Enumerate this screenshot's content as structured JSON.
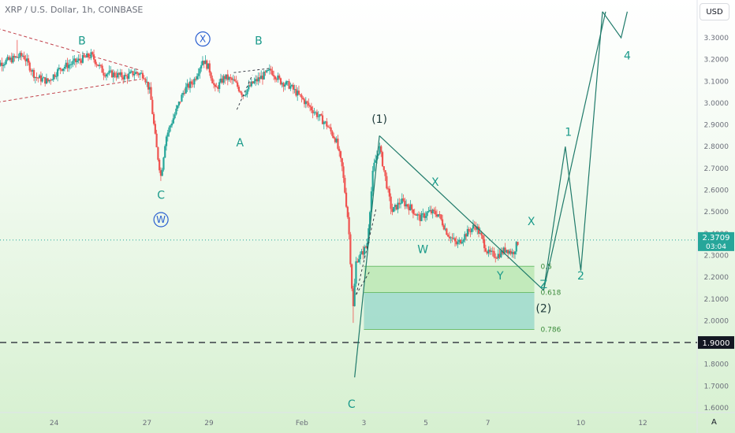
{
  "header": {
    "title": "XRP / U.S. Dollar, 1h, COINBASE"
  },
  "currency_button": "USD",
  "auto_button": "A",
  "colors": {
    "up": "#26a69a",
    "down": "#ef5350",
    "wave": "#1a9a8a",
    "wave_line": "#1f7a6a",
    "fib_fill_light": "#b6e6ad",
    "fib_fill_dark": "#8fd4c8",
    "circle": "#2a5fd0",
    "current_price_bg": "#26a69a",
    "support_bg": "#131722"
  },
  "chart_data": {
    "type": "candlestick",
    "symbol": "XRP / U.S. Dollar",
    "interval": "1h",
    "exchange": "COINBASE",
    "y_axis": {
      "ticks": [
        "3.3000",
        "3.2000",
        "3.1000",
        "3.0000",
        "2.9000",
        "2.8000",
        "2.7000",
        "2.6000",
        "2.5000",
        "2.4000",
        "2.3000",
        "2.2000",
        "2.1000",
        "2.0000",
        "1.9000",
        "1.8000",
        "1.7000",
        "1.6000"
      ],
      "range": [
        1.57,
        3.42
      ]
    },
    "x_axis": {
      "tick_labels": [
        {
          "label": "24",
          "day": 24.0
        },
        {
          "label": "27",
          "day": 27.0
        },
        {
          "label": "29",
          "day": 29.0
        },
        {
          "label": "Feb",
          "day": 32.0
        },
        {
          "label": "3",
          "day": 34.0
        },
        {
          "label": "5",
          "day": 36.0
        },
        {
          "label": "7",
          "day": 38.0
        },
        {
          "label": "10",
          "day": 41.0
        },
        {
          "label": "12",
          "day": 43.0
        }
      ],
      "range": [
        22.0,
        44.5
      ]
    },
    "price_path": [
      [
        22.0,
        3.17
      ],
      [
        22.6,
        3.2
      ],
      [
        23.0,
        3.22
      ],
      [
        23.4,
        3.12
      ],
      [
        23.8,
        3.1
      ],
      [
        24.2,
        3.16
      ],
      [
        24.7,
        3.19
      ],
      [
        25.2,
        3.22
      ],
      [
        25.6,
        3.14
      ],
      [
        26.0,
        3.13
      ],
      [
        26.3,
        3.12
      ],
      [
        26.6,
        3.14
      ],
      [
        26.9,
        3.13
      ],
      [
        27.1,
        3.05
      ],
      [
        27.3,
        2.8
      ],
      [
        27.45,
        2.66
      ],
      [
        27.6,
        2.84
      ],
      [
        27.9,
        2.95
      ],
      [
        28.2,
        3.06
      ],
      [
        28.5,
        3.1
      ],
      [
        28.8,
        3.2
      ],
      [
        29.0,
        3.16
      ],
      [
        29.2,
        3.06
      ],
      [
        29.5,
        3.12
      ],
      [
        29.8,
        3.1
      ],
      [
        30.1,
        3.04
      ],
      [
        30.4,
        3.09
      ],
      [
        30.7,
        3.12
      ],
      [
        31.0,
        3.15
      ],
      [
        31.3,
        3.1
      ],
      [
        31.6,
        3.08
      ],
      [
        32.0,
        3.02
      ],
      [
        32.4,
        2.96
      ],
      [
        32.8,
        2.9
      ],
      [
        33.1,
        2.83
      ],
      [
        33.3,
        2.7
      ],
      [
        33.5,
        2.45
      ],
      [
        33.65,
        2.05
      ],
      [
        33.75,
        2.28
      ],
      [
        33.9,
        2.3
      ],
      [
        34.1,
        2.35
      ],
      [
        34.3,
        2.7
      ],
      [
        34.5,
        2.8
      ],
      [
        34.7,
        2.65
      ],
      [
        34.9,
        2.5
      ],
      [
        35.2,
        2.55
      ],
      [
        35.5,
        2.52
      ],
      [
        35.8,
        2.47
      ],
      [
        36.1,
        2.5
      ],
      [
        36.4,
        2.49
      ],
      [
        36.7,
        2.4
      ],
      [
        37.0,
        2.35
      ],
      [
        37.3,
        2.4
      ],
      [
        37.6,
        2.44
      ],
      [
        37.8,
        2.38
      ],
      [
        38.0,
        2.31
      ],
      [
        38.3,
        2.3
      ],
      [
        38.6,
        2.33
      ],
      [
        38.8,
        2.31
      ],
      [
        39.0,
        2.37
      ]
    ],
    "wick_extremes": [
      {
        "day": 27.45,
        "low": 2.65
      },
      {
        "day": 33.65,
        "low": 1.99
      },
      {
        "day": 22.8,
        "high": 3.29
      },
      {
        "day": 28.9,
        "high": 3.22
      }
    ],
    "current_price": {
      "value": "2.3709",
      "countdown": "03:04",
      "price": 2.3709
    },
    "support_level": {
      "value": "1.9000",
      "price": 1.9
    },
    "fib_levels": [
      {
        "label": "0.5",
        "price": 2.25
      },
      {
        "label": "0.618",
        "price": 2.13
      },
      {
        "label": "0.786",
        "price": 1.96
      }
    ],
    "fib_zone": {
      "day_start": 34.0,
      "day_end": 39.5
    },
    "triangle": {
      "upper": [
        [
          22.0,
          3.35
        ],
        [
          26.8,
          3.15
        ]
      ],
      "lower": [
        [
          22.0,
          3.0
        ],
        [
          26.8,
          3.11
        ]
      ]
    },
    "wave_lines": [
      {
        "name": "impulse-1",
        "points": [
          [
            33.7,
            1.74
          ],
          [
            34.5,
            2.85
          ]
        ]
      },
      {
        "name": "correction-2",
        "points": [
          [
            34.5,
            2.85
          ],
          [
            39.8,
            2.14
          ]
        ]
      },
      {
        "name": "projection",
        "points": [
          [
            39.8,
            2.14
          ],
          [
            40.5,
            2.8
          ],
          [
            41.0,
            2.23
          ],
          [
            41.7,
            3.42
          ]
        ]
      },
      {
        "name": "projection-b",
        "points": [
          [
            39.8,
            2.14
          ],
          [
            41.8,
            3.42
          ]
        ]
      },
      {
        "name": "projection-c",
        "points": [
          [
            41.7,
            3.42
          ],
          [
            42.3,
            3.3
          ],
          [
            42.5,
            3.42
          ]
        ]
      }
    ],
    "annotations": [
      {
        "text": "B",
        "day": 24.9,
        "price": 3.27,
        "style": "wave"
      },
      {
        "text": "X",
        "day": 28.8,
        "price": 3.28,
        "style": "circled"
      },
      {
        "text": "B",
        "day": 30.6,
        "price": 3.27,
        "style": "wave"
      },
      {
        "text": "A",
        "day": 30.0,
        "price": 2.8,
        "style": "wave"
      },
      {
        "text": "C",
        "day": 27.45,
        "price": 2.56,
        "style": "wave"
      },
      {
        "text": "W",
        "day": 27.45,
        "price": 2.45,
        "style": "circled"
      },
      {
        "text": "(1)",
        "day": 34.5,
        "price": 2.91,
        "style": "dark"
      },
      {
        "text": "X",
        "day": 36.3,
        "price": 2.62,
        "style": "wave"
      },
      {
        "text": "W",
        "day": 35.9,
        "price": 2.31,
        "style": "wave"
      },
      {
        "text": "X",
        "day": 39.4,
        "price": 2.44,
        "style": "wave"
      },
      {
        "text": "Y",
        "day": 38.4,
        "price": 2.19,
        "style": "wave"
      },
      {
        "text": "Z",
        "day": 39.8,
        "price": 2.15,
        "style": "wave"
      },
      {
        "text": "(2)",
        "day": 39.8,
        "price": 2.04,
        "style": "dark"
      },
      {
        "text": "1",
        "day": 40.6,
        "price": 2.85,
        "style": "wave"
      },
      {
        "text": "2",
        "day": 41.0,
        "price": 2.19,
        "style": "wave"
      },
      {
        "text": "4",
        "day": 42.5,
        "price": 3.2,
        "style": "wave"
      },
      {
        "text": "C",
        "day": 33.6,
        "price": 1.6,
        "style": "wave"
      }
    ]
  }
}
